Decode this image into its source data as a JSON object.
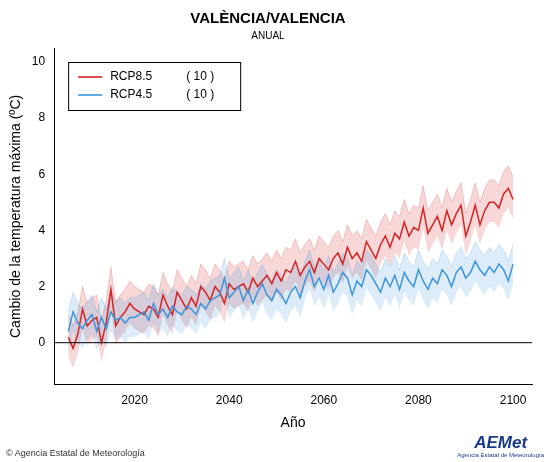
{
  "chart_data": {
    "type": "line",
    "title": "VALÈNCIA/VALENCIA",
    "subtitle": "ANUAL",
    "x_label": "Año",
    "y_label": "Cambio de la temperatura máxima (ºC)",
    "footer": "© Agencia Estatal de Meteorología",
    "logo": {
      "text": "AEMet",
      "subtext": "Agencia Estatal de Meteorología"
    },
    "xlim": [
      2003,
      2104
    ],
    "xticks": [
      2020,
      2040,
      2060,
      2080,
      2100
    ],
    "ylim": [
      -1.5,
      10.5
    ],
    "yticks": [
      0,
      2,
      4,
      6,
      8,
      10
    ],
    "hline": 0,
    "grid": false,
    "legend": "top-left",
    "x": [
      2006,
      2007,
      2008,
      2009,
      2010,
      2011,
      2012,
      2013,
      2014,
      2015,
      2016,
      2017,
      2018,
      2019,
      2020,
      2021,
      2022,
      2023,
      2024,
      2025,
      2026,
      2027,
      2028,
      2029,
      2030,
      2031,
      2032,
      2033,
      2034,
      2035,
      2036,
      2037,
      2038,
      2039,
      2040,
      2041,
      2042,
      2043,
      2044,
      2045,
      2046,
      2047,
      2048,
      2049,
      2050,
      2051,
      2052,
      2053,
      2054,
      2055,
      2056,
      2057,
      2058,
      2059,
      2060,
      2061,
      2062,
      2063,
      2064,
      2065,
      2066,
      2067,
      2068,
      2069,
      2070,
      2071,
      2072,
      2073,
      2074,
      2075,
      2076,
      2077,
      2078,
      2079,
      2080,
      2081,
      2082,
      2083,
      2084,
      2085,
      2086,
      2087,
      2088,
      2089,
      2090,
      2091,
      2092,
      2093,
      2094,
      2095,
      2096,
      2097,
      2098,
      2099,
      2100
    ],
    "series": [
      {
        "name": "RCP8.5",
        "color": "#d42424",
        "models": {
          "value": 10,
          "label": "( 10 )"
        },
        "values": [
          0.2,
          -0.2,
          0.3,
          1.2,
          0.6,
          0.8,
          0.9,
          0.0,
          0.7,
          1.9,
          0.6,
          0.9,
          1.1,
          1.4,
          1.2,
          1.1,
          1.0,
          1.3,
          1.2,
          0.9,
          1.7,
          1.3,
          1.0,
          1.8,
          1.5,
          1.2,
          1.6,
          1.3,
          2.0,
          1.8,
          1.5,
          2.0,
          1.8,
          1.4,
          2.1,
          1.9,
          2.0,
          2.1,
          1.8,
          2.3,
          2.0,
          2.2,
          2.4,
          2.1,
          2.5,
          2.2,
          2.6,
          2.5,
          2.9,
          2.4,
          2.7,
          2.9,
          2.5,
          3.0,
          2.8,
          2.6,
          3.0,
          3.2,
          2.8,
          3.4,
          3.0,
          3.2,
          2.9,
          3.6,
          3.3,
          3.0,
          3.5,
          3.8,
          3.4,
          3.9,
          3.7,
          4.3,
          3.8,
          4.1,
          4.0,
          4.8,
          3.9,
          4.2,
          4.5,
          4.0,
          4.7,
          4.2,
          4.6,
          4.9,
          3.8,
          4.3,
          4.9,
          4.2,
          4.7,
          5.0,
          5.0,
          4.8,
          5.3,
          5.5,
          5.1
        ],
        "lower": [
          -0.5,
          -0.9,
          -0.4,
          0.5,
          -0.1,
          0.1,
          0.2,
          -0.7,
          0.0,
          1.2,
          -0.1,
          0.2,
          0.4,
          0.7,
          0.5,
          0.4,
          0.3,
          0.6,
          0.5,
          0.2,
          1.0,
          0.6,
          0.3,
          1.1,
          0.8,
          0.5,
          0.9,
          0.6,
          1.3,
          1.1,
          0.8,
          1.3,
          1.1,
          0.7,
          1.4,
          1.2,
          1.3,
          1.4,
          1.1,
          1.6,
          1.3,
          1.5,
          1.7,
          1.4,
          1.8,
          1.5,
          1.9,
          1.8,
          2.2,
          1.7,
          2.0,
          2.2,
          1.8,
          2.3,
          2.1,
          1.9,
          2.3,
          2.5,
          2.1,
          2.7,
          2.3,
          2.5,
          2.2,
          2.9,
          2.6,
          2.3,
          2.8,
          3.1,
          2.7,
          3.2,
          3.0,
          3.6,
          3.1,
          3.4,
          3.3,
          4.1,
          3.2,
          3.5,
          3.8,
          3.3,
          4.0,
          3.5,
          3.9,
          4.2,
          3.1,
          3.6,
          4.2,
          3.5,
          4.0,
          4.3,
          4.3,
          4.1,
          4.6,
          4.8,
          4.4
        ],
        "upper": [
          1.0,
          0.6,
          1.1,
          2.0,
          1.4,
          1.6,
          1.7,
          0.8,
          1.5,
          2.7,
          1.4,
          1.7,
          1.9,
          2.2,
          2.0,
          1.9,
          1.8,
          2.1,
          2.0,
          1.7,
          2.5,
          2.1,
          1.8,
          2.6,
          2.3,
          2.0,
          2.4,
          2.1,
          2.8,
          2.6,
          2.3,
          2.8,
          2.6,
          2.2,
          2.9,
          2.7,
          2.8,
          2.9,
          2.6,
          3.1,
          2.8,
          3.0,
          3.2,
          2.9,
          3.3,
          3.0,
          3.4,
          3.3,
          3.7,
          3.2,
          3.5,
          3.7,
          3.3,
          3.8,
          3.6,
          3.4,
          3.8,
          4.0,
          3.6,
          4.2,
          3.8,
          4.0,
          3.7,
          4.4,
          4.1,
          3.8,
          4.3,
          4.6,
          4.2,
          4.7,
          4.5,
          5.1,
          4.6,
          4.9,
          4.8,
          5.6,
          4.7,
          5.0,
          5.3,
          4.8,
          5.5,
          5.0,
          5.4,
          5.7,
          4.6,
          5.1,
          5.7,
          5.0,
          5.5,
          5.8,
          5.8,
          5.6,
          6.1,
          6.3,
          5.9
        ]
      },
      {
        "name": "RCP4.5",
        "color": "#3c96dc",
        "models": {
          "value": 10,
          "label": "( 10 )"
        },
        "values": [
          0.4,
          1.1,
          0.7,
          0.5,
          0.8,
          1.0,
          0.4,
          0.9,
          0.5,
          1.1,
          0.8,
          0.9,
          0.7,
          0.9,
          0.9,
          1.0,
          1.1,
          0.8,
          1.4,
          1.0,
          1.2,
          0.9,
          1.3,
          1.1,
          1.0,
          1.3,
          1.2,
          1.0,
          1.4,
          1.2,
          1.5,
          1.6,
          1.7,
          2.3,
          1.6,
          1.8,
          2.0,
          1.5,
          1.9,
          1.4,
          1.8,
          2.1,
          1.7,
          1.5,
          1.9,
          1.7,
          1.4,
          1.8,
          2.0,
          1.6,
          2.2,
          2.6,
          2.0,
          2.3,
          1.9,
          2.4,
          1.8,
          2.1,
          2.5,
          2.3,
          1.7,
          2.2,
          2.0,
          2.6,
          2.4,
          2.1,
          1.8,
          2.3,
          2.0,
          2.4,
          1.9,
          2.5,
          2.2,
          2.0,
          2.6,
          2.2,
          1.9,
          2.3,
          2.1,
          2.6,
          2.4,
          2.0,
          2.5,
          2.7,
          2.3,
          2.5,
          2.9,
          2.6,
          2.4,
          2.7,
          2.5,
          2.8,
          2.6,
          2.2,
          2.8
        ],
        "lower": [
          -0.3,
          0.4,
          0.0,
          -0.2,
          0.1,
          0.3,
          -0.3,
          0.2,
          -0.2,
          0.4,
          0.1,
          0.2,
          0.0,
          0.2,
          0.2,
          0.3,
          0.4,
          0.1,
          0.7,
          0.3,
          0.5,
          0.2,
          0.6,
          0.4,
          0.3,
          0.6,
          0.5,
          0.3,
          0.7,
          0.5,
          0.8,
          0.9,
          1.0,
          1.6,
          0.9,
          1.1,
          1.3,
          0.8,
          1.2,
          0.7,
          1.1,
          1.4,
          1.0,
          0.8,
          1.2,
          1.0,
          0.7,
          1.1,
          1.3,
          0.9,
          1.5,
          1.9,
          1.3,
          1.6,
          1.2,
          1.7,
          1.1,
          1.4,
          1.8,
          1.6,
          1.0,
          1.5,
          1.3,
          1.9,
          1.7,
          1.4,
          1.1,
          1.6,
          1.3,
          1.7,
          1.2,
          1.8,
          1.5,
          1.3,
          1.9,
          1.5,
          1.2,
          1.6,
          1.4,
          1.9,
          1.7,
          1.3,
          1.8,
          2.0,
          1.6,
          1.8,
          2.2,
          1.9,
          1.7,
          2.0,
          1.8,
          2.1,
          1.9,
          1.5,
          2.1
        ],
        "upper": [
          1.1,
          1.8,
          1.4,
          1.2,
          1.5,
          1.7,
          1.1,
          1.6,
          1.2,
          1.8,
          1.5,
          1.6,
          1.4,
          1.6,
          1.6,
          1.7,
          1.8,
          1.5,
          2.1,
          1.7,
          1.9,
          1.6,
          2.0,
          1.8,
          1.7,
          2.0,
          1.9,
          1.7,
          2.1,
          1.9,
          2.2,
          2.3,
          2.4,
          3.0,
          2.3,
          2.5,
          2.7,
          2.2,
          2.6,
          2.1,
          2.5,
          2.8,
          2.4,
          2.2,
          2.6,
          2.4,
          2.1,
          2.5,
          2.7,
          2.3,
          2.9,
          3.3,
          2.7,
          3.0,
          2.6,
          3.1,
          2.5,
          2.8,
          3.2,
          3.0,
          2.4,
          2.9,
          2.7,
          3.3,
          3.1,
          2.8,
          2.5,
          3.0,
          2.7,
          3.1,
          2.6,
          3.2,
          2.9,
          2.7,
          3.3,
          2.9,
          2.6,
          3.0,
          2.8,
          3.3,
          3.1,
          2.7,
          3.2,
          3.4,
          3.0,
          3.2,
          3.6,
          3.3,
          3.1,
          3.4,
          3.2,
          3.5,
          3.3,
          2.9,
          3.5
        ]
      }
    ]
  }
}
